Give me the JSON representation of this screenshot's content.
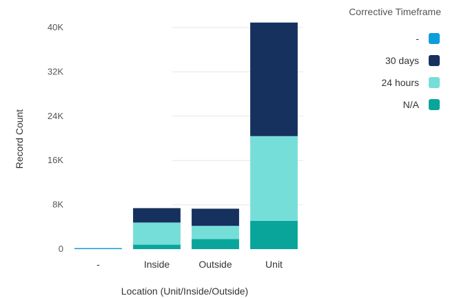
{
  "chart_data": {
    "type": "bar",
    "stacked": true,
    "categories": [
      "-",
      "Inside",
      "Outside",
      "Unit"
    ],
    "series": [
      {
        "name": "N/A",
        "color": "#0aa59a",
        "values": [
          0,
          800,
          1800,
          5100
        ]
      },
      {
        "name": "24 hours",
        "color": "#76ded8",
        "values": [
          0,
          4000,
          2400,
          15300
        ]
      },
      {
        "name": "30 days",
        "color": "#16315e",
        "values": [
          0,
          2600,
          3100,
          20500
        ]
      },
      {
        "name": "-",
        "color": "#0b9edb",
        "values": [
          150,
          0,
          0,
          0
        ]
      }
    ],
    "ylim": [
      0,
      40000
    ],
    "yticks": [
      0,
      8000,
      16000,
      24000,
      32000,
      40000
    ],
    "ytick_labels": [
      "0",
      "8K",
      "16K",
      "24K",
      "32K",
      "40K"
    ],
    "xlabel": "Location (Unit/Inside/Outside)",
    "ylabel": "Record Count",
    "grid": true,
    "legend": {
      "title": "Corrective Timeframe",
      "placement": "top-right",
      "entries": [
        {
          "label": "-",
          "color": "#0b9edb"
        },
        {
          "label": "30 days",
          "color": "#16315e"
        },
        {
          "label": "24 hours",
          "color": "#76ded8"
        },
        {
          "label": "N/A",
          "color": "#0aa59a"
        }
      ]
    }
  }
}
